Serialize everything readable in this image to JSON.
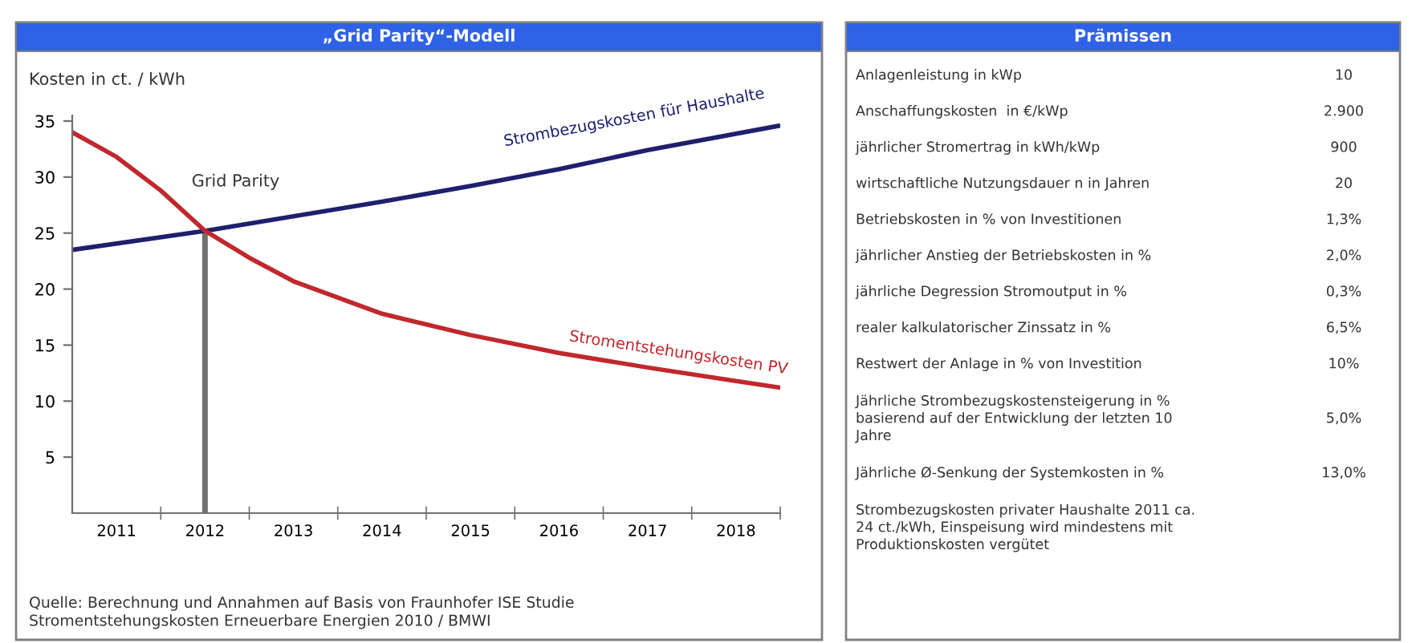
{
  "chart_data": [
    {
      "type": "line",
      "title": "„Grid Parity“-Modell",
      "ylabel": "Kosten in ct. / kWh",
      "xlim": [
        2010.5,
        2018.5
      ],
      "xticks": [
        {
          "value": 2011,
          "label": "2011"
        },
        {
          "value": 2012,
          "label": "2012"
        },
        {
          "value": 2013,
          "label": "2013"
        },
        {
          "value": 2014,
          "label": "2014"
        },
        {
          "value": 2015,
          "label": "2015"
        },
        {
          "value": 2016,
          "label": "2016"
        },
        {
          "value": 2017,
          "label": "2017"
        },
        {
          "value": 2018,
          "label": "2018"
        },
        {
          "value": 2011.5,
          "label": null
        },
        {
          "value": 2012.5,
          "label": null
        },
        {
          "value": 2013.5,
          "label": null
        },
        {
          "value": 2014.5,
          "label": null
        },
        {
          "value": 2015.5,
          "label": null
        },
        {
          "value": 2016.5,
          "label": null
        },
        {
          "value": 2017.5,
          "label": null
        },
        {
          "value": 2018.5,
          "label": null
        }
      ],
      "ylim": [
        0,
        35.5
      ],
      "yticks": [
        5,
        10,
        15,
        20,
        25,
        30,
        35
      ],
      "grid": false,
      "legend": false,
      "marker": "none",
      "line_style": "solid",
      "series": [
        {
          "name": "Strombezugskosten für Haushalte",
          "color": "#1f1f6e",
          "x": [
            2010.5,
            2012,
            2014,
            2015,
            2016,
            2017,
            2018.5
          ],
          "values": [
            23.5,
            25.2,
            27.8,
            29.2,
            30.7,
            32.4,
            34.6
          ]
        },
        {
          "name": "Stromentstehungskosten PV",
          "color": "#c0282d",
          "x": [
            2010.5,
            2011,
            2011.5,
            2012,
            2012.5,
            2013,
            2014,
            2015,
            2016,
            2017,
            2018,
            2018.5
          ],
          "values": [
            34.0,
            31.8,
            28.8,
            25.2,
            22.8,
            20.7,
            17.8,
            15.9,
            14.3,
            13.0,
            11.8,
            11.2
          ]
        }
      ],
      "ref_lines": [
        {
          "axis": "x",
          "value": 2012,
          "label": "Grid Parity",
          "color": "#707070"
        }
      ],
      "annotations": [
        "Quelle: Berechnung und Annahmen auf Basis von Fraunhofer ISE Studie\nStromentstehungskosten Erneuerbare Energien 2010 / BMWI"
      ]
    },
    {
      "type": "other",
      "title": "Prämissen",
      "categories": [
        "Anlagenleistung in kWp",
        "Anschaffungskosten  in €/kWp",
        "jährlicher Stromertrag in kWh/kWp",
        "wirtschaftliche Nutzungsdauer n in Jahren",
        "Betriebskosten in % von Investitionen",
        "jährlicher Anstieg der Betriebskosten in %",
        "jährliche Degression Stromoutput in %",
        "realer kalkulatorischer Zinssatz in %",
        "Restwert der Anlage in % von Investition",
        "Jährliche Strombezugskostensteigerung in %\nbasierend auf der Entwicklung der letzten 10\nJahre",
        "Jährliche Ø-Senkung der Systemkosten in %",
        "Strombezugskosten privater Haushalte 2011 ca.\n24 ct./kWh, Einspeisung wird mindestens mit\nProduktionskosten vergütet"
      ],
      "value_labels": [
        "10",
        "2.900",
        "900",
        "20",
        "1,3%",
        "2,0%",
        "0,3%",
        "6,5%",
        "10%",
        "5,0%",
        "13,0%",
        null
      ]
    }
  ]
}
